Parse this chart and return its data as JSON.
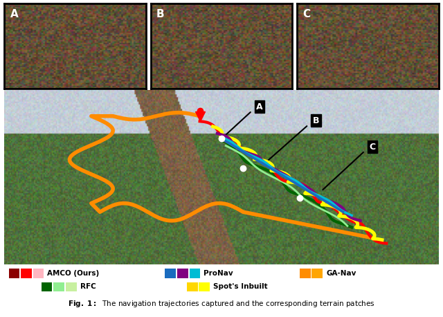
{
  "figure_title": "Fig. 1: The navigation trajectories captured and the corresponding terrain patches",
  "background_color": "#ffffff",
  "legend_entries": [
    {
      "label": "AMCO (Ours)",
      "colors": [
        "#8b0000",
        "#ff0000",
        "#ffb6c1"
      ],
      "row": 0
    },
    {
      "label": "ProNav",
      "colors": [
        "#1a6cbf",
        "#800080",
        "#00bcd4"
      ],
      "row": 0
    },
    {
      "label": "GA-Nav",
      "colors": [
        "#ff8c00",
        "#ffa500"
      ],
      "row": 0
    },
    {
      "label": "RFC",
      "colors": [
        "#006400",
        "#90ee90",
        "#d4f0a0"
      ],
      "row": 1
    },
    {
      "label": "Spot's Inbuilt",
      "colors": [
        "#ffd700",
        "#ffff00"
      ],
      "row": 1
    }
  ],
  "inset_labels": [
    "A",
    "B",
    "C"
  ],
  "path_labels": [
    "A",
    "B",
    "C"
  ],
  "caption": "Fig. 1:  The navigation trajectories captured and the corresponding terrain patches"
}
